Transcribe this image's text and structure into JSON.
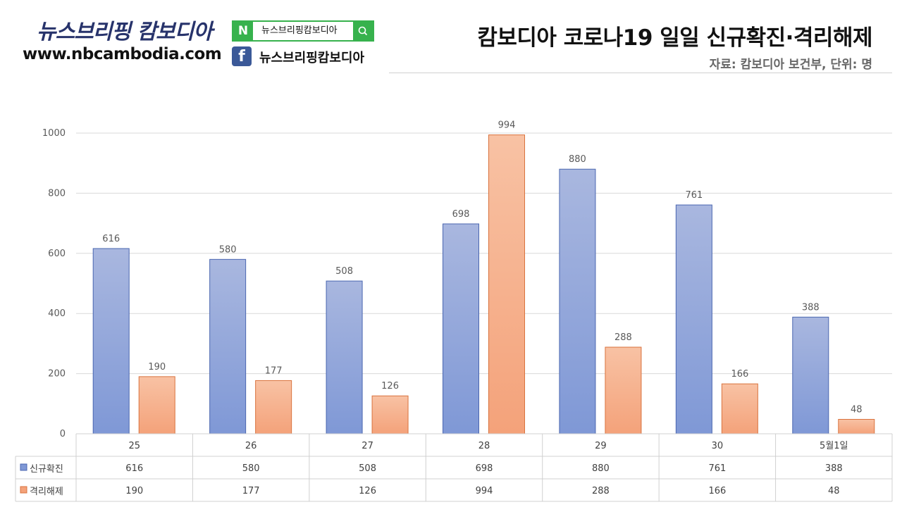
{
  "header": {
    "brand_name": "뉴스브리핑 캄보디아",
    "brand_url": "www.nbcambodia.com",
    "naver_label": "뉴스브리핑캄보디아",
    "facebook_label": "뉴스브리핑캄보디아",
    "title": "캄보디아 코로나19 일일 신규확진·격리해제",
    "subtitle": "자료: 캄보디아 보건부, 단위: 명"
  },
  "colors": {
    "series1_top": "#a9b7df",
    "series1_bottom": "#7f98d6",
    "series2_top": "#f8c2a4",
    "series2_bottom": "#f4a27a"
  },
  "chart_data": {
    "type": "bar",
    "title": "캄보디아 코로나19 일일 신규확진·격리해제",
    "categories": [
      "25",
      "26",
      "27",
      "28",
      "29",
      "30",
      "5월1일"
    ],
    "series": [
      {
        "name": "신규확진",
        "values": [
          616,
          580,
          508,
          698,
          880,
          761,
          388
        ]
      },
      {
        "name": "격리해제",
        "values": [
          190,
          177,
          126,
          994,
          288,
          166,
          48
        ]
      }
    ],
    "ylim": [
      0,
      1000
    ],
    "yticks": [
      0,
      200,
      400,
      600,
      800,
      1000
    ],
    "grid": true,
    "legend": "data-table-below"
  }
}
